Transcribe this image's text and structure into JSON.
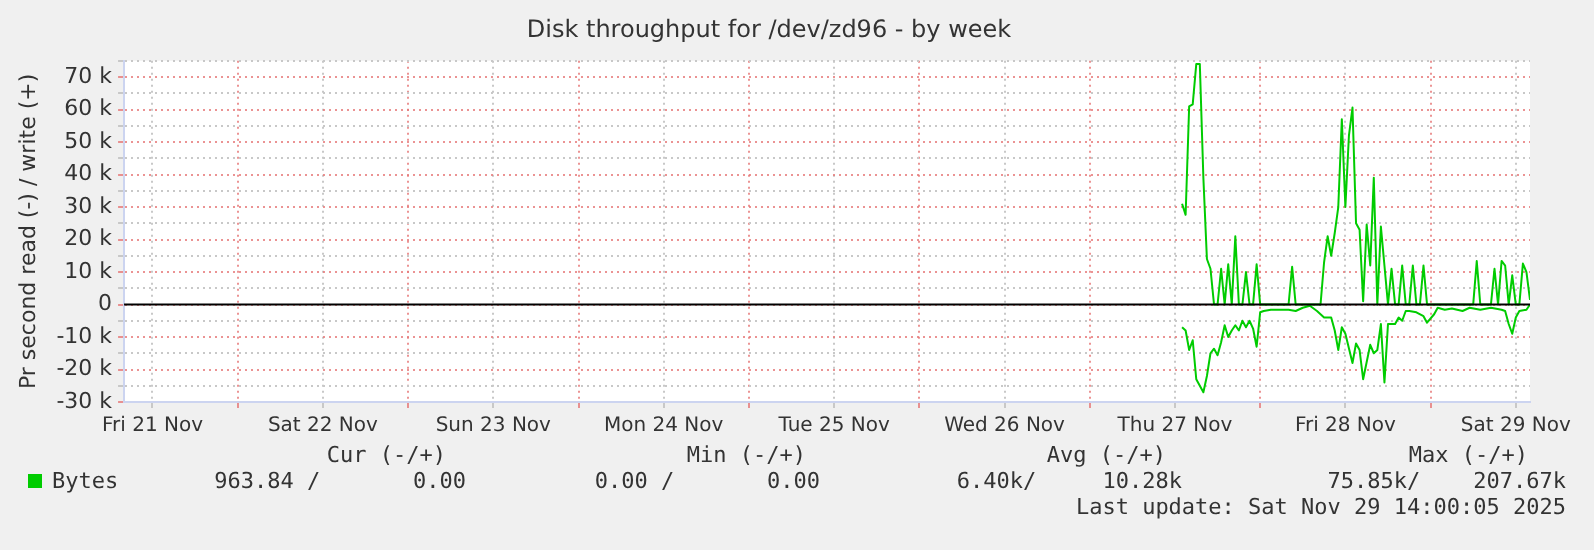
{
  "chart_data": {
    "type": "line",
    "title": "Disk throughput for /dev/zd96 - by week",
    "ylabel": "Pr second read (-) / write (+)",
    "xlim": [
      "2025-11-21T08:00",
      "2025-11-29T14:00"
    ],
    "xticks": [
      {
        "value": "2025-11-21T12:00",
        "label": "Fri 21 Nov"
      },
      {
        "value": "2025-11-22T00:00",
        "label": null
      },
      {
        "value": "2025-11-22T12:00",
        "label": "Sat 22 Nov"
      },
      {
        "value": "2025-11-23T00:00",
        "label": null
      },
      {
        "value": "2025-11-23T12:00",
        "label": "Sun 23 Nov"
      },
      {
        "value": "2025-11-24T00:00",
        "label": null
      },
      {
        "value": "2025-11-24T12:00",
        "label": "Mon 24 Nov"
      },
      {
        "value": "2025-11-25T00:00",
        "label": null
      },
      {
        "value": "2025-11-25T12:00",
        "label": "Tue 25 Nov"
      },
      {
        "value": "2025-11-26T00:00",
        "label": null
      },
      {
        "value": "2025-11-26T12:00",
        "label": "Wed 26 Nov"
      },
      {
        "value": "2025-11-27T00:00",
        "label": null
      },
      {
        "value": "2025-11-27T12:00",
        "label": "Thu 27 Nov"
      },
      {
        "value": "2025-11-28T00:00",
        "label": null
      },
      {
        "value": "2025-11-28T12:00",
        "label": "Fri 28 Nov"
      },
      {
        "value": "2025-11-29T00:00",
        "label": null
      },
      {
        "value": "2025-11-29T12:00",
        "label": "Sat 29 Nov"
      }
    ],
    "ylim": [
      -30000,
      75000
    ],
    "yticks": [
      {
        "value": -30000,
        "label": "-30 k"
      },
      {
        "value": -25000,
        "label": null
      },
      {
        "value": -20000,
        "label": "-20 k"
      },
      {
        "value": -15000,
        "label": null
      },
      {
        "value": -10000,
        "label": "-10 k"
      },
      {
        "value": -5000,
        "label": null
      },
      0,
      {
        "value": 5000,
        "label": null
      },
      {
        "value": 10000,
        "label": "10 k"
      },
      {
        "value": 15000,
        "label": null
      },
      {
        "value": 20000,
        "label": "20 k"
      },
      {
        "value": 25000,
        "label": null
      },
      {
        "value": 30000,
        "label": "30 k"
      },
      {
        "value": 35000,
        "label": null
      },
      {
        "value": 40000,
        "label": "40 k"
      },
      {
        "value": 45000,
        "label": null
      },
      {
        "value": 50000,
        "label": "50 k"
      },
      {
        "value": 55000,
        "label": null
      },
      {
        "value": 60000,
        "label": "60 k"
      },
      {
        "value": 65000,
        "label": null
      },
      {
        "value": 70000,
        "label": "70 k"
      },
      {
        "value": 75000,
        "label": null
      }
    ],
    "grid": true,
    "legend": "bottom",
    "ref_lines": [
      {
        "axis": "y",
        "value": 0,
        "color": "#000000"
      }
    ],
    "series": [
      {
        "name": "Bytes",
        "color": "#00cc00",
        "x": [
          "2025-11-27T13:00",
          "2025-11-27T13:30",
          "2025-11-27T14:00",
          "2025-11-27T14:30",
          "2025-11-27T15:00",
          "2025-11-27T15:30",
          "2025-11-27T16:00",
          "2025-11-27T16:30",
          "2025-11-27T17:00",
          "2025-11-27T17:30",
          "2025-11-27T18:00",
          "2025-11-27T18:30",
          "2025-11-27T19:00",
          "2025-11-27T19:30",
          "2025-11-27T20:00",
          "2025-11-27T20:30",
          "2025-11-27T21:00",
          "2025-11-27T21:30",
          "2025-11-27T22:00",
          "2025-11-27T22:30",
          "2025-11-27T23:00",
          "2025-11-27T23:30",
          "2025-11-28T00:00",
          "2025-11-28T00:30",
          "2025-11-28T01:00",
          "2025-11-28T01:30",
          "2025-11-28T02:00",
          "2025-11-28T02:30",
          "2025-11-28T03:00",
          "2025-11-28T03:30",
          "2025-11-28T04:00",
          "2025-11-28T04:30",
          "2025-11-28T05:00",
          "2025-11-28T05:30",
          "2025-11-28T06:00",
          "2025-11-28T06:30",
          "2025-11-28T07:00",
          "2025-11-28T07:30",
          "2025-11-28T08:00",
          "2025-11-28T08:30",
          "2025-11-28T09:00",
          "2025-11-28T09:30",
          "2025-11-28T10:00",
          "2025-11-28T10:30",
          "2025-11-28T11:00",
          "2025-11-28T11:30",
          "2025-11-28T12:00",
          "2025-11-28T12:30",
          "2025-11-28T13:00",
          "2025-11-28T13:30",
          "2025-11-28T14:00",
          "2025-11-28T14:30",
          "2025-11-28T15:00",
          "2025-11-28T15:30",
          "2025-11-28T16:00",
          "2025-11-28T16:30",
          "2025-11-28T17:00",
          "2025-11-28T17:30",
          "2025-11-28T18:00",
          "2025-11-28T18:30",
          "2025-11-28T19:00",
          "2025-11-28T19:30",
          "2025-11-28T20:00",
          "2025-11-28T20:30",
          "2025-11-28T21:00",
          "2025-11-28T21:30",
          "2025-11-28T22:00",
          "2025-11-28T22:30",
          "2025-11-28T23:00",
          "2025-11-28T23:30",
          "2025-11-29T00:00",
          "2025-11-29T00:30",
          "2025-11-29T01:00",
          "2025-11-29T01:30",
          "2025-11-29T02:00",
          "2025-11-29T02:30",
          "2025-11-29T03:00",
          "2025-11-29T03:30",
          "2025-11-29T04:00",
          "2025-11-29T04:30",
          "2025-11-29T05:00",
          "2025-11-29T05:30",
          "2025-11-29T06:00",
          "2025-11-29T06:30",
          "2025-11-29T07:00",
          "2025-11-29T07:30",
          "2025-11-29T08:00",
          "2025-11-29T08:30",
          "2025-11-29T09:00",
          "2025-11-29T09:30",
          "2025-11-29T10:00",
          "2025-11-29T10:30",
          "2025-11-29T11:00",
          "2025-11-29T11:30",
          "2025-11-29T12:00",
          "2025-11-29T12:30",
          "2025-11-29T13:00",
          "2025-11-29T13:30",
          "2025-11-29T14:00"
        ],
        "values": [
          31000,
          27600,
          61000,
          61600,
          74000,
          74000,
          39000,
          14000,
          11000,
          0,
          0,
          11000,
          0,
          12400,
          0,
          21000,
          0,
          0,
          10000,
          0,
          0,
          12400,
          0,
          0,
          0,
          0,
          0,
          0,
          0,
          0,
          0,
          11600,
          0,
          0,
          0,
          0,
          0,
          0,
          0,
          0,
          13000,
          21000,
          15000,
          22000,
          30000,
          57000,
          30000,
          52000,
          60600,
          25000,
          23000,
          1000,
          24600,
          12000,
          39000,
          0,
          24000,
          12000,
          0,
          11000,
          0,
          0,
          12000,
          0,
          0,
          12000,
          0,
          0,
          12000,
          0,
          0,
          0,
          0,
          0,
          0,
          0,
          0,
          0,
          0,
          0,
          0,
          0,
          0,
          13400,
          0,
          0,
          0,
          0,
          11000,
          0,
          13400,
          12000,
          0,
          9000,
          0,
          0,
          12600,
          10000,
          1400
        ]
      },
      {
        "color": "#00cc00",
        "x": [
          "2025-11-27T13:00",
          "2025-11-27T13:30",
          "2025-11-27T14:00",
          "2025-11-27T14:30",
          "2025-11-27T15:00",
          "2025-11-27T15:30",
          "2025-11-27T16:00",
          "2025-11-27T16:30",
          "2025-11-27T17:00",
          "2025-11-27T17:30",
          "2025-11-27T18:00",
          "2025-11-27T18:30",
          "2025-11-27T19:00",
          "2025-11-27T19:30",
          "2025-11-27T20:00",
          "2025-11-27T20:30",
          "2025-11-27T21:00",
          "2025-11-27T21:30",
          "2025-11-27T22:00",
          "2025-11-27T22:30",
          "2025-11-27T23:00",
          "2025-11-27T23:30",
          "2025-11-28T00:00",
          "2025-11-28T00:30",
          "2025-11-28T01:30",
          "2025-11-28T04:00",
          "2025-11-28T05:00",
          "2025-11-28T06:00",
          "2025-11-28T07:00",
          "2025-11-28T08:00",
          "2025-11-28T09:00",
          "2025-11-28T10:00",
          "2025-11-28T10:30",
          "2025-11-28T11:00",
          "2025-11-28T11:30",
          "2025-11-28T12:00",
          "2025-11-28T13:00",
          "2025-11-28T13:30",
          "2025-11-28T14:00",
          "2025-11-28T14:30",
          "2025-11-28T15:30",
          "2025-11-28T16:00",
          "2025-11-28T16:30",
          "2025-11-28T17:00",
          "2025-11-28T17:30",
          "2025-11-28T18:00",
          "2025-11-28T19:00",
          "2025-11-28T19:30",
          "2025-11-28T20:00",
          "2025-11-28T20:30",
          "2025-11-28T21:00",
          "2025-11-28T22:00",
          "2025-11-28T23:00",
          "2025-11-28T23:30",
          "2025-11-29T00:30",
          "2025-11-29T01:00",
          "2025-11-29T02:00",
          "2025-11-29T03:00",
          "2025-11-29T04:30",
          "2025-11-29T05:30",
          "2025-11-29T07:00",
          "2025-11-29T08:30",
          "2025-11-29T10:00",
          "2025-11-29T10:30",
          "2025-11-29T11:00",
          "2025-11-29T11:30",
          "2025-11-29T12:00",
          "2025-11-29T12:30",
          "2025-11-29T13:30",
          "2025-11-29T14:00"
        ],
        "values": [
          -7000,
          -8000,
          -14000,
          -11000,
          -23000,
          -25000,
          -27000,
          -22000,
          -15000,
          -13600,
          -15600,
          -11600,
          -6400,
          -10000,
          -8000,
          -6400,
          -8000,
          -5000,
          -7000,
          -5000,
          -7400,
          -13000,
          -2400,
          -2000,
          -1600,
          -1600,
          -2000,
          -1000,
          -400,
          -2000,
          -4000,
          -4000,
          -8000,
          -14000,
          -7000,
          -9000,
          -18000,
          -12000,
          -14000,
          -23000,
          -12400,
          -15000,
          -14000,
          -6000,
          -24000,
          -6000,
          -6000,
          -4000,
          -5000,
          -2000,
          -2000,
          -2400,
          -3600,
          -5600,
          -3000,
          -1000,
          -1600,
          -1200,
          -2000,
          -1000,
          -1600,
          -1000,
          -1600,
          -2000,
          -6000,
          -9000,
          -4000,
          -2000,
          -1600,
          0
        ]
      }
    ],
    "annotations": [
      "Cur (-/+)",
      "Min (-/+)",
      "Avg (-/+)",
      "Max (-/+)",
      "963.84 /       0.00",
      "0.00 /       0.00",
      "6.40k/     10.28k",
      "75.85k/    207.67k",
      "Last update: Sat Nov 29 14:00:05 2025"
    ]
  }
}
